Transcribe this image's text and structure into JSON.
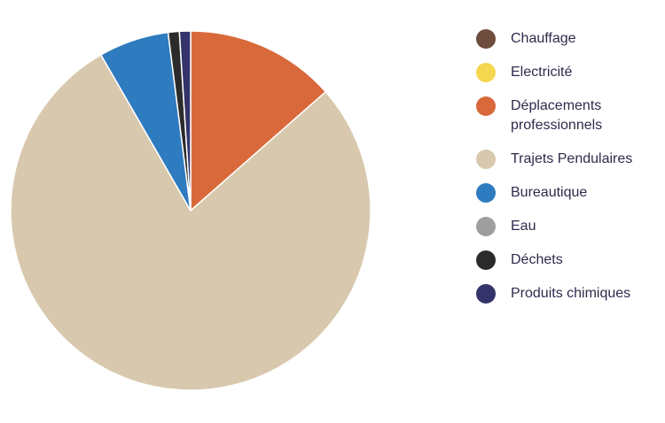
{
  "chart_data": {
    "type": "pie",
    "categories": [
      "Chauffage",
      "Electricité",
      "Déplacements professionnels",
      "Trajets Pendulaires",
      "Bureautique",
      "Eau",
      "Déchets",
      "Produits chimiques"
    ],
    "values": [
      0,
      0,
      13.5,
      78.2,
      6.3,
      0,
      1,
      1
    ],
    "colors": [
      "#6e4c3e",
      "#f5d64f",
      "#d9693a",
      "#d8c8ad",
      "#2f7bbf",
      "#9e9e9e",
      "#2b2b2b",
      "#34346a"
    ],
    "legend": "right"
  }
}
